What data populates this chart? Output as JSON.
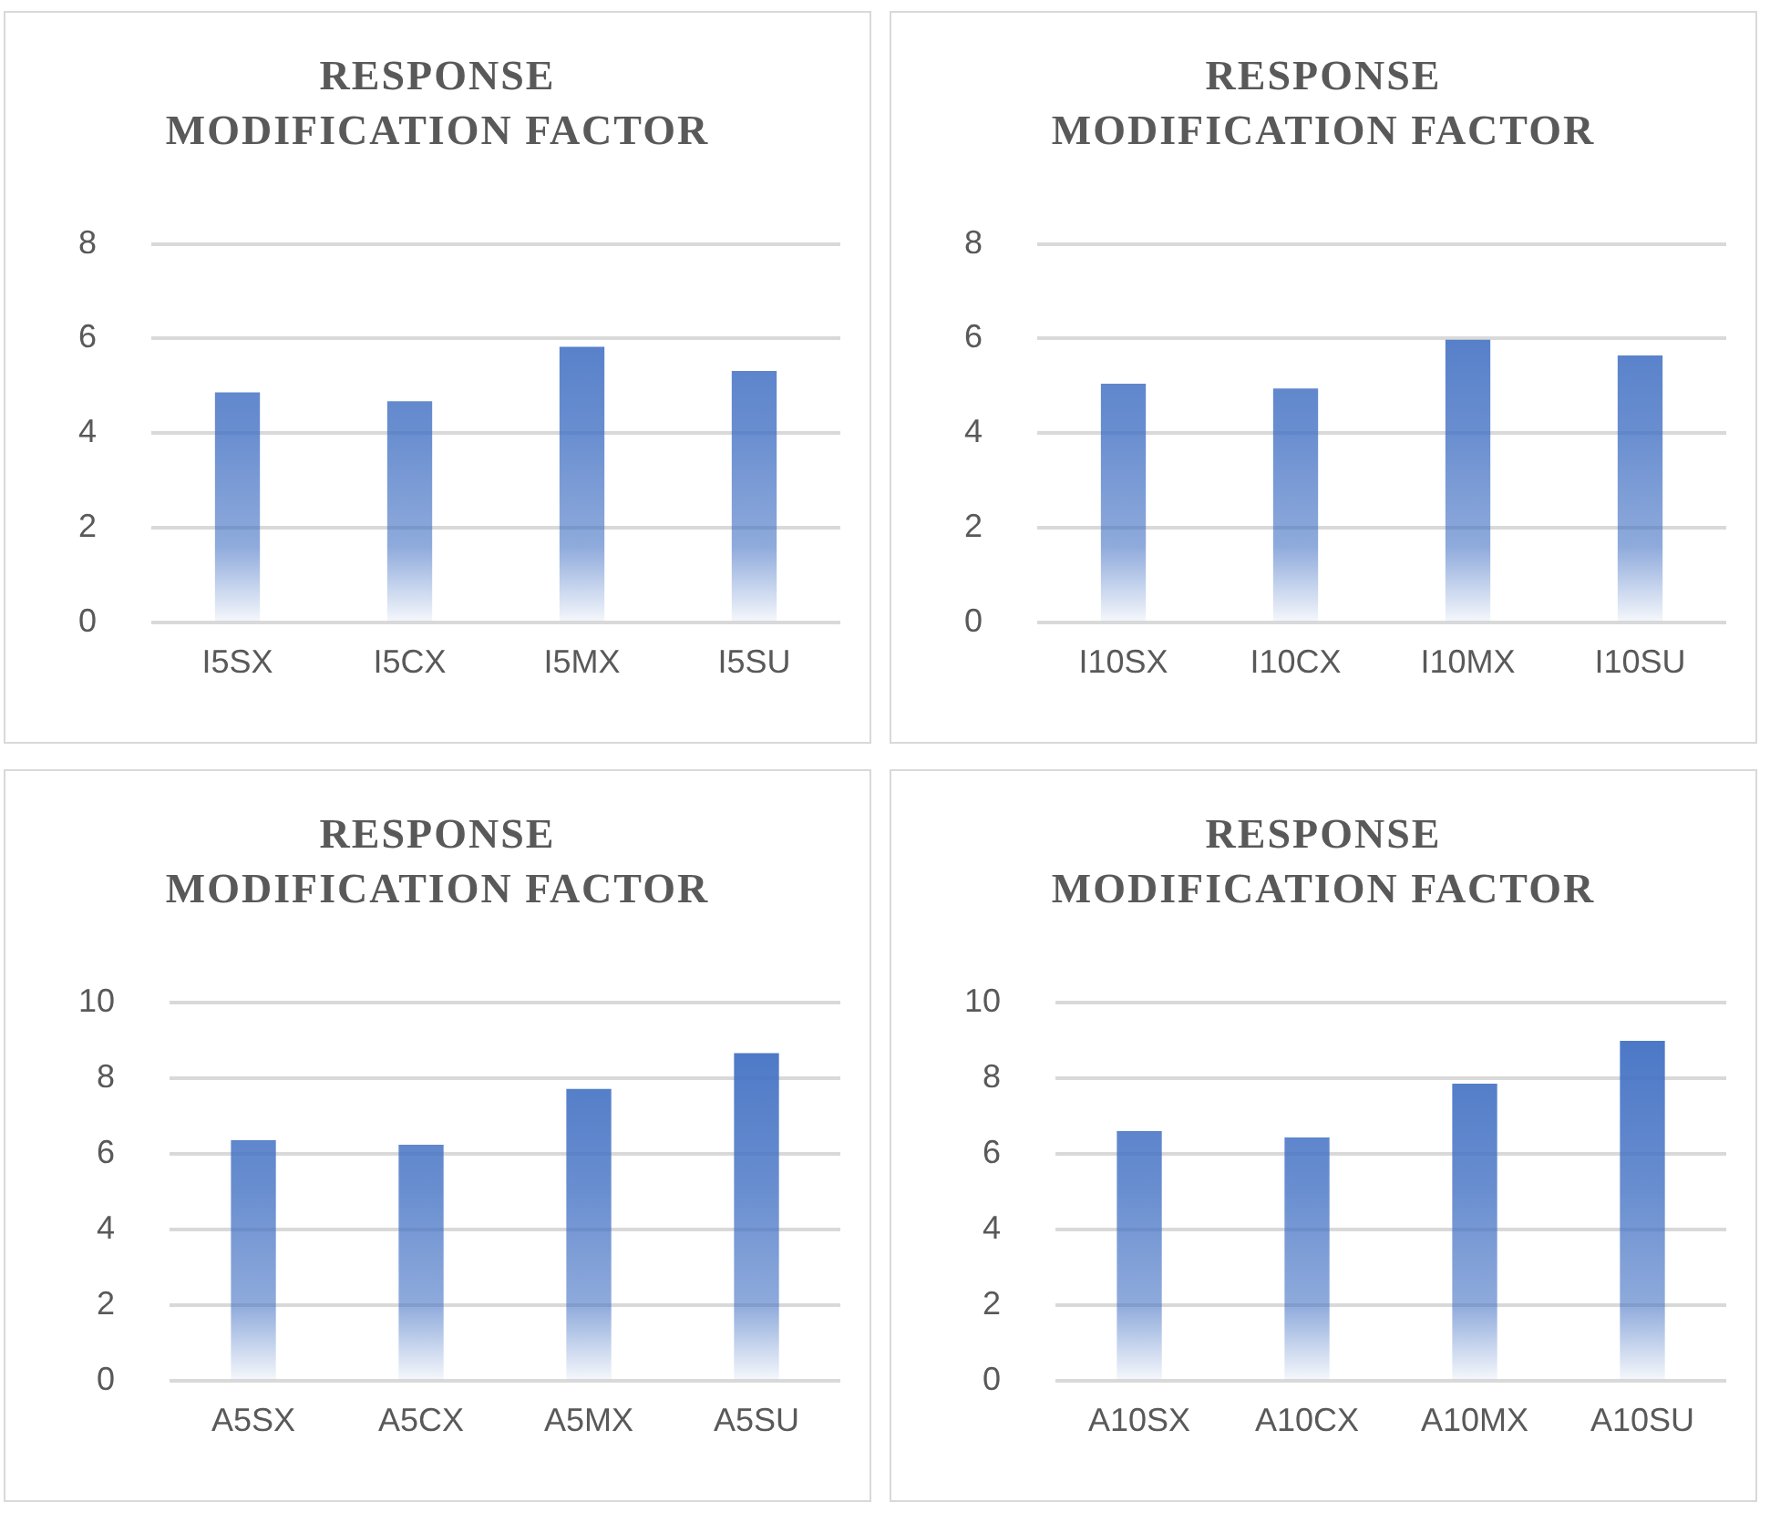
{
  "chart_data": [
    {
      "type": "bar",
      "title": "RESPONSE MODIFICATION FACTOR",
      "categories": [
        "I5SX",
        "I5CX",
        "I5MX",
        "I5SU"
      ],
      "values": [
        4.85,
        4.66,
        5.81,
        5.3
      ],
      "color": "#4472c4",
      "ylim": [
        0,
        8
      ],
      "yticks": [
        0,
        2,
        4,
        6,
        8
      ],
      "grid": "y"
    },
    {
      "type": "bar",
      "title": "RESPONSE MODIFICATION FACTOR",
      "categories": [
        "I10SX",
        "I10CX",
        "I10MX",
        "I10SU"
      ],
      "values": [
        5.03,
        4.93,
        5.96,
        5.63
      ],
      "color": "#4472c4",
      "ylim": [
        0,
        8
      ],
      "yticks": [
        0,
        2,
        4,
        6,
        8
      ],
      "grid": "y"
    },
    {
      "type": "bar",
      "title": "RESPONSE MODIFICATION FACTOR",
      "categories": [
        "A5SX",
        "A5CX",
        "A5MX",
        "A5SU"
      ],
      "values": [
        6.34,
        6.22,
        7.69,
        8.64
      ],
      "color": "#4472c4",
      "ylim": [
        0,
        10
      ],
      "yticks": [
        0,
        2,
        4,
        6,
        8,
        10
      ],
      "grid": "y"
    },
    {
      "type": "bar",
      "title": "RESPONSE MODIFICATION FACTOR",
      "categories": [
        "A10SX",
        "A10CX",
        "A10MX",
        "A10SU"
      ],
      "values": [
        6.58,
        6.41,
        7.83,
        8.96
      ],
      "color": "#4472c4",
      "ylim": [
        0,
        10
      ],
      "yticks": [
        0,
        2,
        4,
        6,
        8,
        10
      ],
      "grid": "y"
    }
  ]
}
